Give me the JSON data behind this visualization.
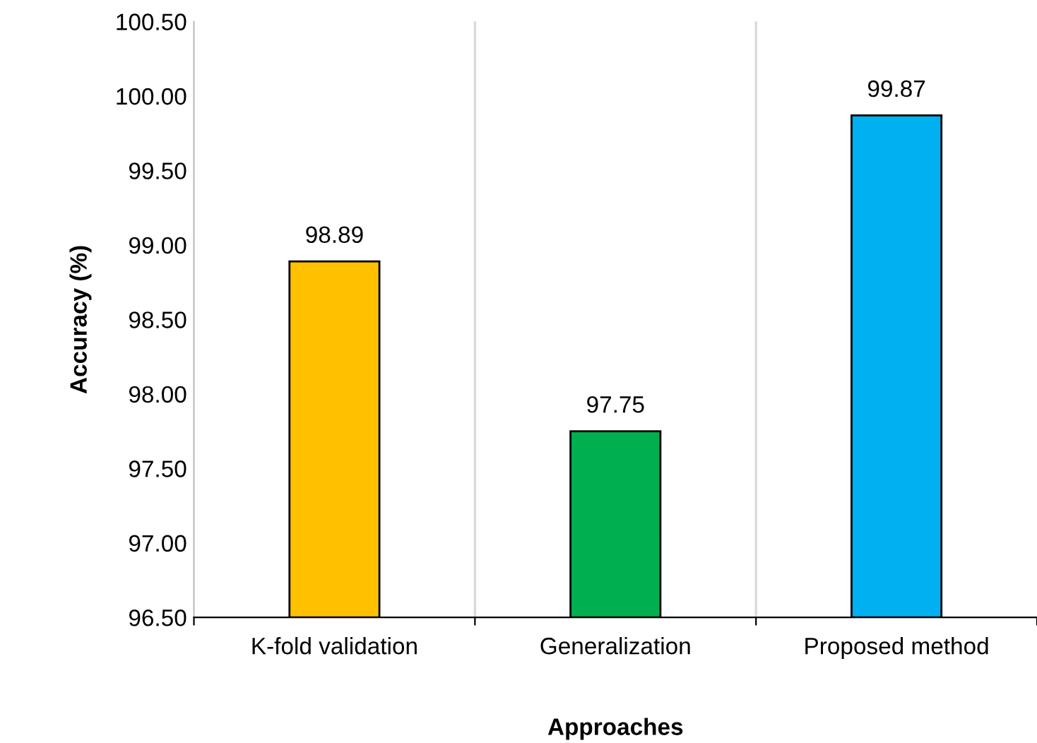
{
  "chart_data": {
    "type": "bar",
    "xlabel": "Approaches",
    "ylabel": "Accuracy (%)",
    "categories": [
      "K-fold validation",
      "Generalization",
      "Proposed method"
    ],
    "values": [
      98.89,
      97.75,
      99.87
    ],
    "colors": [
      "#ffc000",
      "#00b050",
      "#00b0f0"
    ],
    "ylim": [
      96.5,
      100.5
    ],
    "yticks": [
      {
        "value": 96.5,
        "label": "96.50"
      },
      {
        "value": 97.0,
        "label": "97.00"
      },
      {
        "value": 97.5,
        "label": "97.50"
      },
      {
        "value": 98.0,
        "label": "98.00"
      },
      {
        "value": 98.5,
        "label": "98.50"
      },
      {
        "value": 99.0,
        "label": "99.00"
      },
      {
        "value": 99.5,
        "label": "99.50"
      },
      {
        "value": 100.0,
        "label": "100.00"
      },
      {
        "value": 100.5,
        "label": "100.50"
      }
    ],
    "grid": "x",
    "data_labels": true
  }
}
